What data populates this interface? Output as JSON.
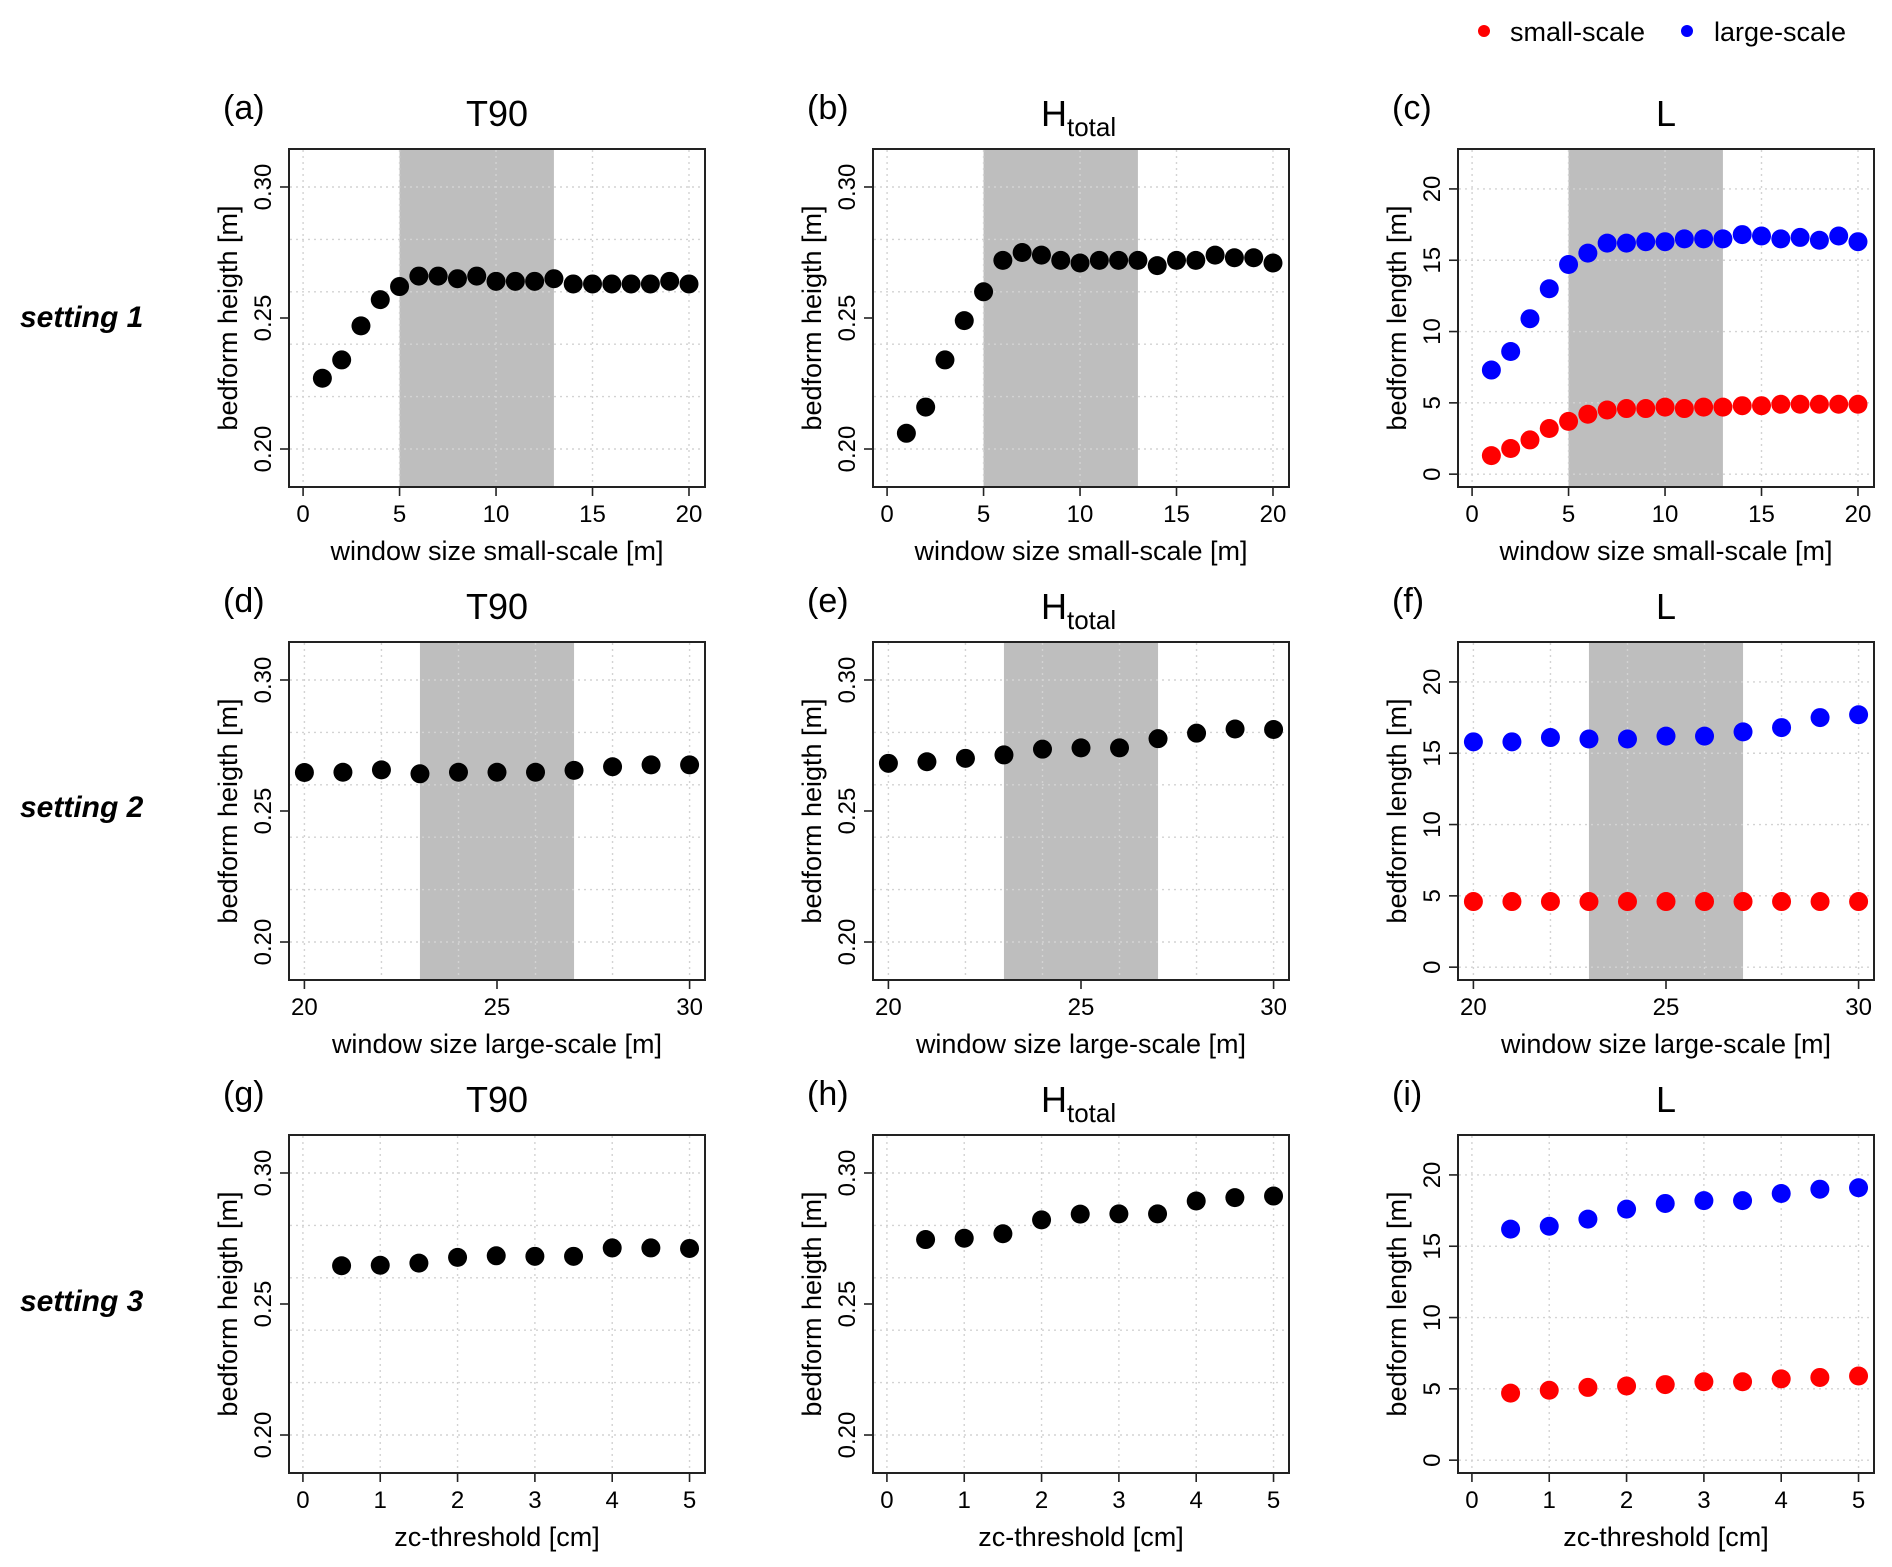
{
  "legend": {
    "items": [
      {
        "label": "small-scale",
        "color": "#ff0000"
      },
      {
        "label": "large-scale",
        "color": "#0000ff"
      }
    ]
  },
  "row_labels": [
    "setting 1",
    "setting 2",
    "setting 3"
  ],
  "colors": {
    "black": "#000000",
    "small": "#ff0000",
    "large": "#0000ff",
    "shade": "#bebebe",
    "grid": "#d3d3d3"
  },
  "chart_data": [
    {
      "id": "a",
      "letter": "(a)",
      "title": "T90",
      "title_sub": "",
      "type": "scatter",
      "xlabel": "window size small-scale [m]",
      "ylabel": "bedform heigth [m]",
      "xlim": [
        -0.73,
        20.83
      ],
      "ylim": [
        0.1855,
        0.3145
      ],
      "xticks": [
        0,
        5,
        10,
        15,
        20
      ],
      "xtick_labels": [
        "0",
        "5",
        "10",
        "15",
        "20"
      ],
      "yticks": [
        0.2,
        0.25,
        0.3
      ],
      "ytick_labels": [
        "0.20",
        "0.25",
        "0.30"
      ],
      "xgrid": [
        0,
        5,
        10,
        15,
        20
      ],
      "ygrid": [
        0.2,
        0.22,
        0.24,
        0.26,
        0.28,
        0.3
      ],
      "shaded_x_range": [
        5,
        13
      ],
      "grid": true,
      "x": [
        1,
        2,
        3,
        4,
        5,
        6,
        7,
        8,
        9,
        10,
        11,
        12,
        13,
        14,
        15,
        16,
        17,
        18,
        19,
        20
      ],
      "series": [
        {
          "name": "T90",
          "color": "#000000",
          "values": [
            0.227,
            0.234,
            0.247,
            0.257,
            0.262,
            0.266,
            0.266,
            0.265,
            0.266,
            0.264,
            0.264,
            0.264,
            0.265,
            0.263,
            0.263,
            0.263,
            0.263,
            0.263,
            0.264,
            0.263
          ]
        }
      ]
    },
    {
      "id": "b",
      "letter": "(b)",
      "title": "H",
      "title_sub": "total",
      "type": "scatter",
      "xlabel": "window size small-scale [m]",
      "ylabel": "bedform heigth [m]",
      "xlim": [
        -0.73,
        20.83
      ],
      "ylim": [
        0.1855,
        0.3145
      ],
      "xticks": [
        0,
        5,
        10,
        15,
        20
      ],
      "xtick_labels": [
        "0",
        "5",
        "10",
        "15",
        "20"
      ],
      "yticks": [
        0.2,
        0.25,
        0.3
      ],
      "ytick_labels": [
        "0.20",
        "0.25",
        "0.30"
      ],
      "xgrid": [
        0,
        5,
        10,
        15,
        20
      ],
      "ygrid": [
        0.2,
        0.22,
        0.24,
        0.26,
        0.28,
        0.3
      ],
      "shaded_x_range": [
        5,
        13
      ],
      "grid": true,
      "x": [
        1,
        2,
        3,
        4,
        5,
        6,
        7,
        8,
        9,
        10,
        11,
        12,
        13,
        14,
        15,
        16,
        17,
        18,
        19,
        20
      ],
      "series": [
        {
          "name": "Htotal",
          "color": "#000000",
          "values": [
            0.206,
            0.216,
            0.234,
            0.249,
            0.26,
            0.272,
            0.275,
            0.274,
            0.272,
            0.271,
            0.272,
            0.272,
            0.272,
            0.27,
            0.272,
            0.272,
            0.274,
            0.273,
            0.273,
            0.271
          ]
        }
      ]
    },
    {
      "id": "c",
      "letter": "(c)",
      "title": "L",
      "title_sub": "",
      "type": "scatter",
      "xlabel": "window size small-scale [m]",
      "ylabel": "bedform length [m]",
      "xlim": [
        -0.73,
        20.83
      ],
      "ylim": [
        -0.9,
        22.8
      ],
      "xticks": [
        0,
        5,
        10,
        15,
        20
      ],
      "xtick_labels": [
        "0",
        "5",
        "10",
        "15",
        "20"
      ],
      "yticks": [
        0,
        5,
        10,
        15,
        20
      ],
      "ytick_labels": [
        "0",
        "5",
        "10",
        "15",
        "20"
      ],
      "xgrid": [
        0,
        5,
        10,
        15,
        20
      ],
      "ygrid": [
        0,
        5,
        10,
        15,
        20
      ],
      "shaded_x_range": [
        5,
        13
      ],
      "grid": true,
      "x": [
        1,
        2,
        3,
        4,
        5,
        6,
        7,
        8,
        9,
        10,
        11,
        12,
        13,
        14,
        15,
        16,
        17,
        18,
        19,
        20
      ],
      "series": [
        {
          "name": "small-scale",
          "color": "#ff0000",
          "values": [
            1.3,
            1.8,
            2.4,
            3.2,
            3.7,
            4.2,
            4.5,
            4.6,
            4.6,
            4.7,
            4.6,
            4.7,
            4.7,
            4.8,
            4.8,
            4.9,
            4.9,
            4.9,
            4.9,
            4.9
          ]
        },
        {
          "name": "large-scale",
          "color": "#0000ff",
          "values": [
            7.3,
            8.6,
            10.9,
            13.0,
            14.7,
            15.5,
            16.2,
            16.2,
            16.3,
            16.3,
            16.5,
            16.5,
            16.5,
            16.8,
            16.7,
            16.5,
            16.6,
            16.4,
            16.7,
            16.3
          ]
        }
      ]
    },
    {
      "id": "d",
      "letter": "(d)",
      "title": "T90",
      "title_sub": "",
      "type": "scatter",
      "xlabel": "window size large-scale [m]",
      "ylabel": "bedform heigth [m]",
      "xlim": [
        19.6,
        30.4
      ],
      "ylim": [
        0.1855,
        0.3145
      ],
      "xticks": [
        20,
        25,
        30
      ],
      "xtick_labels": [
        "20",
        "25",
        "30"
      ],
      "yticks": [
        0.2,
        0.25,
        0.3
      ],
      "ytick_labels": [
        "0.20",
        "0.25",
        "0.30"
      ],
      "xgrid": [
        20,
        22,
        24,
        26,
        28,
        30
      ],
      "ygrid": [
        0.2,
        0.22,
        0.24,
        0.26,
        0.28,
        0.3
      ],
      "shaded_x_range": [
        23,
        27
      ],
      "grid": true,
      "x": [
        20,
        21,
        22,
        23,
        24,
        25,
        26,
        27,
        28,
        29,
        30
      ],
      "series": [
        {
          "name": "T90",
          "color": "#000000",
          "values": [
            0.2647,
            0.2648,
            0.2657,
            0.2642,
            0.2648,
            0.2648,
            0.2648,
            0.2655,
            0.2669,
            0.2676,
            0.2676
          ]
        }
      ]
    },
    {
      "id": "e",
      "letter": "(e)",
      "title": "H",
      "title_sub": "total",
      "type": "scatter",
      "xlabel": "window size large-scale [m]",
      "ylabel": "bedform heigth [m]",
      "xlim": [
        19.6,
        30.4
      ],
      "ylim": [
        0.1855,
        0.3145
      ],
      "xticks": [
        20,
        25,
        30
      ],
      "xtick_labels": [
        "20",
        "25",
        "30"
      ],
      "yticks": [
        0.2,
        0.25,
        0.3
      ],
      "ytick_labels": [
        "0.20",
        "0.25",
        "0.30"
      ],
      "xgrid": [
        20,
        22,
        24,
        26,
        28,
        30
      ],
      "ygrid": [
        0.2,
        0.22,
        0.24,
        0.26,
        0.28,
        0.3
      ],
      "shaded_x_range": [
        23,
        27
      ],
      "grid": true,
      "x": [
        20,
        21,
        22,
        23,
        24,
        25,
        26,
        27,
        28,
        29,
        30
      ],
      "series": [
        {
          "name": "Htotal",
          "color": "#000000",
          "values": [
            0.2682,
            0.2688,
            0.2701,
            0.2714,
            0.2736,
            0.2741,
            0.2741,
            0.2776,
            0.2797,
            0.2813,
            0.2811
          ]
        }
      ]
    },
    {
      "id": "f",
      "letter": "(f)",
      "title": "L",
      "title_sub": "",
      "type": "scatter",
      "xlabel": "window size large-scale [m]",
      "ylabel": "bedform length [m]",
      "xlim": [
        19.6,
        30.4
      ],
      "ylim": [
        -0.9,
        22.8
      ],
      "xticks": [
        20,
        25,
        30
      ],
      "xtick_labels": [
        "20",
        "25",
        "30"
      ],
      "yticks": [
        0,
        5,
        10,
        15,
        20
      ],
      "ytick_labels": [
        "0",
        "5",
        "10",
        "15",
        "20"
      ],
      "xgrid": [
        20,
        22,
        24,
        26,
        28,
        30
      ],
      "ygrid": [
        0,
        5,
        10,
        15,
        20
      ],
      "shaded_x_range": [
        23,
        27
      ],
      "grid": true,
      "x": [
        20,
        21,
        22,
        23,
        24,
        25,
        26,
        27,
        28,
        29,
        30
      ],
      "series": [
        {
          "name": "small-scale",
          "color": "#ff0000",
          "values": [
            4.6,
            4.6,
            4.6,
            4.6,
            4.6,
            4.6,
            4.6,
            4.6,
            4.6,
            4.6,
            4.6
          ]
        },
        {
          "name": "large-scale",
          "color": "#0000ff",
          "values": [
            15.8,
            15.8,
            16.1,
            16.0,
            16.0,
            16.2,
            16.2,
            16.5,
            16.8,
            17.5,
            17.7
          ]
        }
      ]
    },
    {
      "id": "g",
      "letter": "(g)",
      "title": "T90",
      "title_sub": "",
      "type": "scatter",
      "xlabel": "zc-threshold [cm]",
      "ylabel": "bedform heigth [m]",
      "xlim": [
        -0.18,
        5.2
      ],
      "ylim": [
        0.1855,
        0.3145
      ],
      "xticks": [
        0,
        1,
        2,
        3,
        4,
        5
      ],
      "xtick_labels": [
        "0",
        "1",
        "2",
        "3",
        "4",
        "5"
      ],
      "yticks": [
        0.2,
        0.25,
        0.3
      ],
      "ytick_labels": [
        "0.20",
        "0.25",
        "0.30"
      ],
      "xgrid": [
        0,
        1,
        2,
        3,
        4,
        5
      ],
      "ygrid": [
        0.2,
        0.22,
        0.24,
        0.26,
        0.28,
        0.3
      ],
      "shaded_x_range": null,
      "grid": true,
      "x": [
        0.5,
        1,
        1.5,
        2,
        2.5,
        3,
        3.5,
        4,
        4.5,
        5
      ],
      "series": [
        {
          "name": "T90",
          "color": "#000000",
          "values": [
            0.2646,
            0.2648,
            0.2656,
            0.2678,
            0.2684,
            0.2682,
            0.2682,
            0.2714,
            0.2714,
            0.2712
          ]
        }
      ]
    },
    {
      "id": "h",
      "letter": "(h)",
      "title": "H",
      "title_sub": "total",
      "type": "scatter",
      "xlabel": "zc-threshold [cm]",
      "ylabel": "bedform heigth [m]",
      "xlim": [
        -0.18,
        5.2
      ],
      "ylim": [
        0.1855,
        0.3145
      ],
      "xticks": [
        0,
        1,
        2,
        3,
        4,
        5
      ],
      "xtick_labels": [
        "0",
        "1",
        "2",
        "3",
        "4",
        "5"
      ],
      "yticks": [
        0.2,
        0.25,
        0.3
      ],
      "ytick_labels": [
        "0.20",
        "0.25",
        "0.30"
      ],
      "xgrid": [
        0,
        1,
        2,
        3,
        4,
        5
      ],
      "ygrid": [
        0.2,
        0.22,
        0.24,
        0.26,
        0.28,
        0.3
      ],
      "shaded_x_range": null,
      "grid": true,
      "x": [
        0.5,
        1,
        1.5,
        2,
        2.5,
        3,
        3.5,
        4,
        4.5,
        5
      ],
      "series": [
        {
          "name": "Htotal",
          "color": "#000000",
          "values": [
            0.2746,
            0.2751,
            0.2768,
            0.2821,
            0.2843,
            0.2844,
            0.2844,
            0.2893,
            0.2906,
            0.2912
          ]
        }
      ]
    },
    {
      "id": "i",
      "letter": "(i)",
      "title": "L",
      "title_sub": "",
      "type": "scatter",
      "xlabel": "zc-threshold [cm]",
      "ylabel": "bedform length [m]",
      "xlim": [
        -0.18,
        5.2
      ],
      "ylim": [
        -0.9,
        22.8
      ],
      "xticks": [
        0,
        1,
        2,
        3,
        4,
        5
      ],
      "xtick_labels": [
        "0",
        "1",
        "2",
        "3",
        "4",
        "5"
      ],
      "yticks": [
        0,
        5,
        10,
        15,
        20
      ],
      "ytick_labels": [
        "0",
        "5",
        "10",
        "15",
        "20"
      ],
      "xgrid": [
        0,
        1,
        2,
        3,
        4,
        5
      ],
      "ygrid": [
        0,
        5,
        10,
        15,
        20
      ],
      "shaded_x_range": null,
      "grid": true,
      "x": [
        0.5,
        1,
        1.5,
        2,
        2.5,
        3,
        3.5,
        4,
        4.5,
        5
      ],
      "series": [
        {
          "name": "small-scale",
          "color": "#ff0000",
          "values": [
            4.7,
            4.9,
            5.1,
            5.2,
            5.3,
            5.5,
            5.5,
            5.7,
            5.8,
            5.9
          ]
        },
        {
          "name": "large-scale",
          "color": "#0000ff",
          "values": [
            16.2,
            16.4,
            16.9,
            17.6,
            18.0,
            18.2,
            18.2,
            18.7,
            19.0,
            19.1
          ]
        }
      ]
    }
  ]
}
